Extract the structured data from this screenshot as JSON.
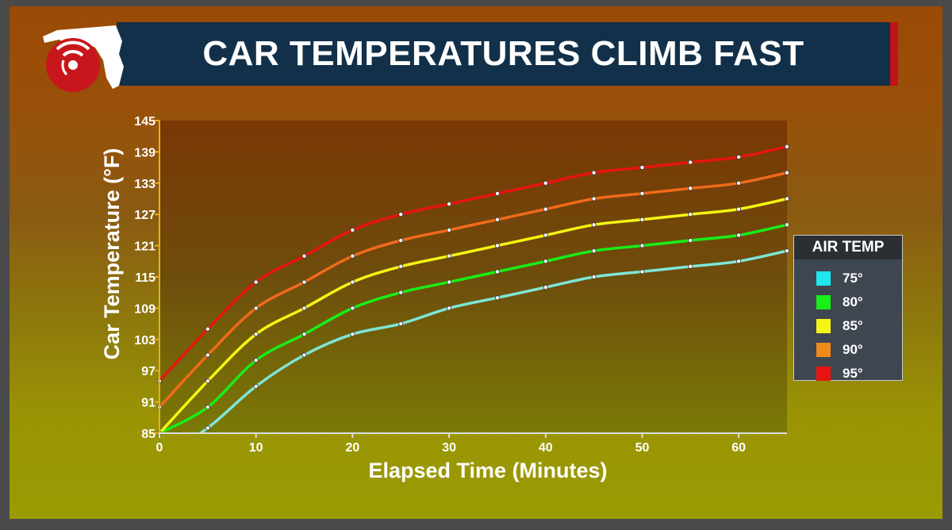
{
  "header": {
    "title": "CAR TEMPERATURES CLIMB FAST",
    "logo_icon": "florida-radar-logo-icon"
  },
  "legend": {
    "title": "AIR TEMP",
    "items": [
      {
        "label": "75°",
        "color": "#1de6f0"
      },
      {
        "label": "80°",
        "color": "#18ef18"
      },
      {
        "label": "85°",
        "color": "#f5f514"
      },
      {
        "label": "90°",
        "color": "#f08a1a"
      },
      {
        "label": "95°",
        "color": "#e8140f"
      }
    ]
  },
  "chart_data": {
    "type": "line",
    "xlabel": "Elapsed Time (Minutes)",
    "ylabel": "Car Temperature (°F)",
    "xlim": [
      0,
      65
    ],
    "ylim": [
      85,
      145
    ],
    "x_ticks": [
      0,
      10,
      20,
      30,
      40,
      50,
      60
    ],
    "y_ticks": [
      85,
      91,
      97,
      103,
      109,
      115,
      121,
      127,
      133,
      139,
      145
    ],
    "grid": false,
    "legend_position": "right",
    "x": [
      0,
      5,
      10,
      15,
      20,
      25,
      30,
      35,
      40,
      45,
      50,
      55,
      60,
      65
    ],
    "series": [
      {
        "name": "75°",
        "color": "#7ee6d6",
        "values": [
          80,
          86,
          94,
          100,
          104,
          106,
          109,
          111,
          113,
          115,
          116,
          117,
          118,
          120
        ]
      },
      {
        "name": "80°",
        "color": "#18ee18",
        "values": [
          85,
          90,
          99,
          104,
          109,
          112,
          114,
          116,
          118,
          120,
          121,
          122,
          123,
          125
        ]
      },
      {
        "name": "85°",
        "color": "#f5f514",
        "values": [
          85,
          95,
          104,
          109,
          114,
          117,
          119,
          121,
          123,
          125,
          126,
          127,
          128,
          130
        ]
      },
      {
        "name": "90°",
        "color": "#f06a1a",
        "values": [
          90,
          100,
          109,
          114,
          119,
          122,
          124,
          126,
          128,
          130,
          131,
          132,
          133,
          135
        ]
      },
      {
        "name": "95°",
        "color": "#e8140f",
        "values": [
          95,
          105,
          114,
          119,
          124,
          127,
          129,
          131,
          133,
          135,
          136,
          137,
          138,
          140
        ]
      }
    ]
  }
}
